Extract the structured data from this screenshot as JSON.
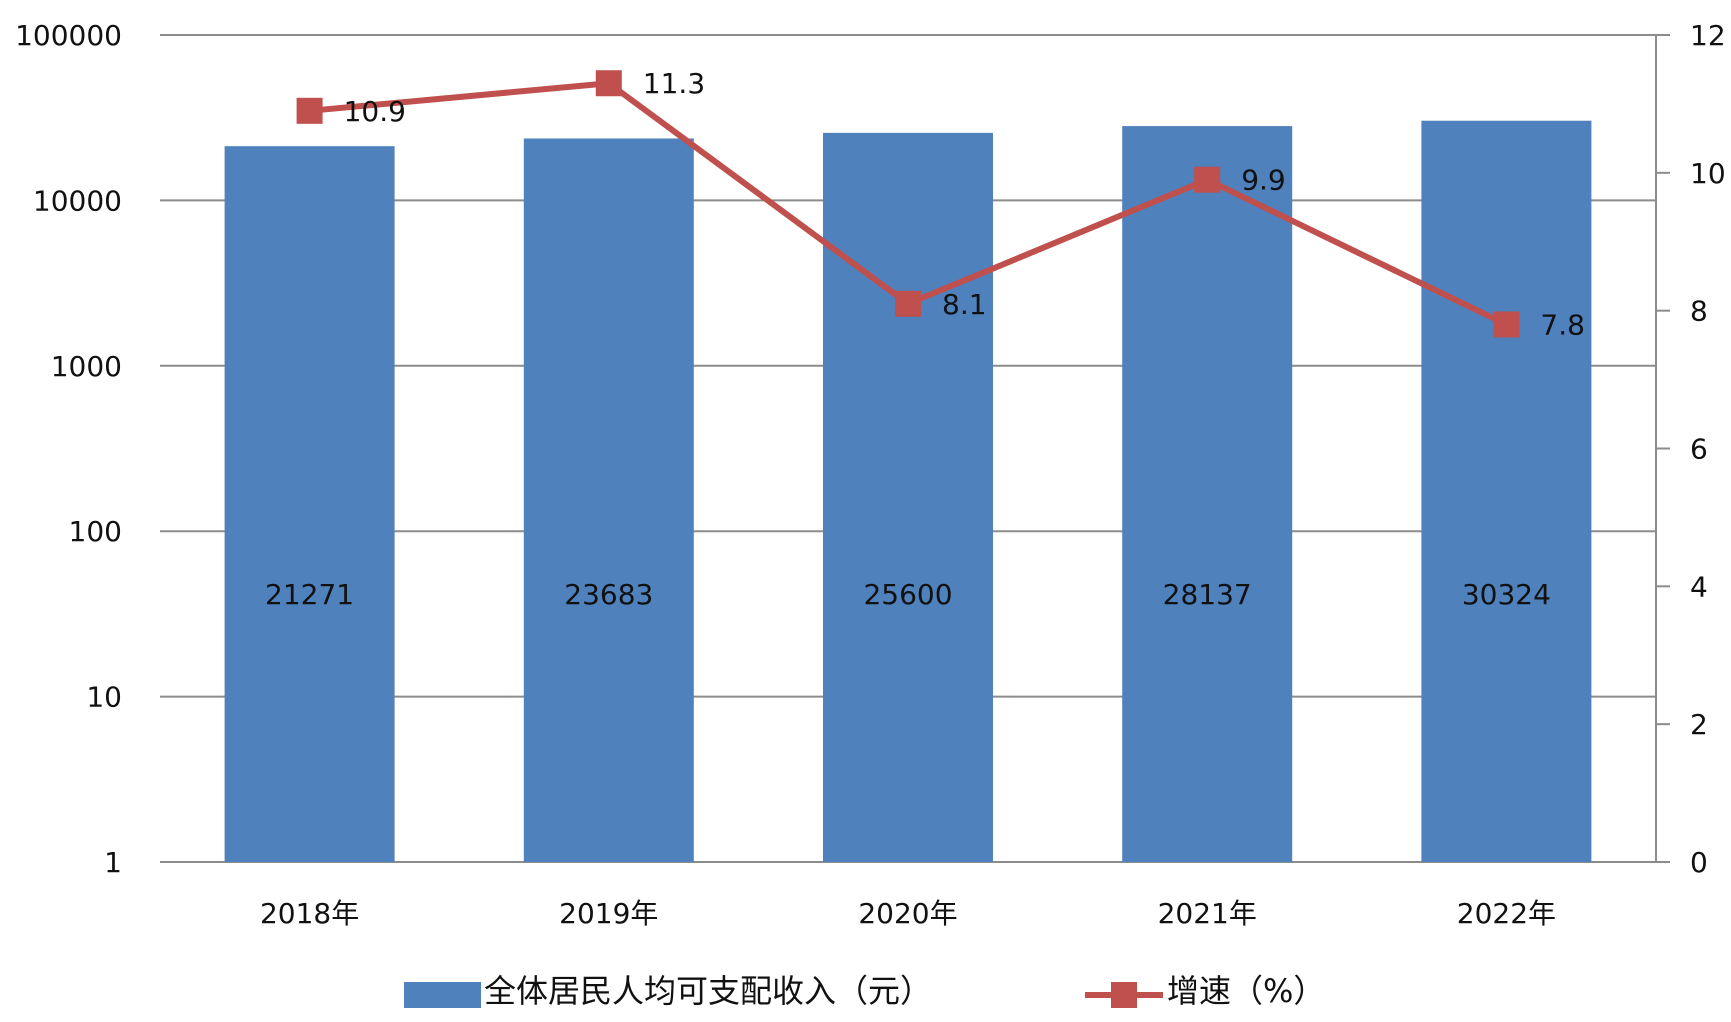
{
  "chart_data": {
    "type": "bar",
    "categories": [
      "2018年",
      "2019年",
      "2020年",
      "2021年",
      "2022年"
    ],
    "series": [
      {
        "name": "全体居民人均可支配收入（元）",
        "type": "bar",
        "axis": "left",
        "values": [
          21271,
          23683,
          25600,
          28137,
          30324
        ],
        "color": "#4F81BD"
      },
      {
        "name": "增速（%）",
        "type": "line",
        "axis": "right",
        "values": [
          10.9,
          11.3,
          8.1,
          9.9,
          7.8
        ],
        "color": "#C0504D"
      }
    ],
    "y_left": {
      "scale": "log",
      "ticks": [
        "1",
        "10",
        "100",
        "1000",
        "10000",
        "100000"
      ],
      "ylim": [
        1,
        100000
      ]
    },
    "y_right": {
      "scale": "linear",
      "ticks": [
        "0",
        "2",
        "4",
        "6",
        "8",
        "10",
        "12"
      ],
      "ylim": [
        0,
        12
      ]
    },
    "grid": true,
    "legend_position": "bottom"
  }
}
